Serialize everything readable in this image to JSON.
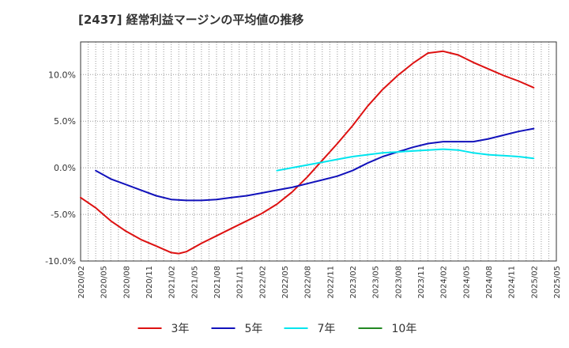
{
  "chart_data": {
    "type": "line",
    "title": "[2437]  経常利益マージンの平均値の推移",
    "y_unit": "%",
    "ylim": [
      -10,
      13.5
    ],
    "yticks": [
      10,
      5,
      0,
      -5,
      -10
    ],
    "ytick_labels": [
      "10.0%",
      "5.0%",
      "0.0%",
      "-5.0%",
      "-10.0%"
    ],
    "x_range": [
      "2020-02",
      "2025-05"
    ],
    "x_ticks": [
      "2020/02",
      "2020/05",
      "2020/08",
      "2020/11",
      "2021/02",
      "2021/05",
      "2021/08",
      "2021/11",
      "2022/02",
      "2022/05",
      "2022/08",
      "2022/11",
      "2023/02",
      "2023/05",
      "2023/08",
      "2023/11",
      "2024/02",
      "2024/05",
      "2024/08",
      "2024/11",
      "2025/02",
      "2025/05"
    ],
    "grid": true,
    "legend_position": "bottom",
    "series": [
      {
        "name": "3年",
        "color": "#dd1111",
        "x": [
          "2020-02",
          "2020-04",
          "2020-06",
          "2020-08",
          "2020-10",
          "2020-12",
          "2021-02",
          "2021-03",
          "2021-04",
          "2021-06",
          "2021-08",
          "2021-10",
          "2021-12",
          "2022-02",
          "2022-04",
          "2022-06",
          "2022-08",
          "2022-10",
          "2022-12",
          "2023-02",
          "2023-04",
          "2023-06",
          "2023-08",
          "2023-10",
          "2023-12",
          "2024-02",
          "2024-03",
          "2024-04",
          "2024-06",
          "2024-08",
          "2024-10",
          "2024-12",
          "2025-02"
        ],
        "values": [
          -3.2,
          -4.3,
          -5.7,
          -6.8,
          -7.7,
          -8.4,
          -9.1,
          -9.2,
          -9.0,
          -8.1,
          -7.3,
          -6.5,
          -5.7,
          -4.9,
          -3.9,
          -2.6,
          -1.0,
          0.8,
          2.6,
          4.5,
          6.6,
          8.4,
          9.9,
          11.2,
          12.3,
          12.5,
          12.3,
          12.1,
          11.3,
          10.6,
          9.9,
          9.3,
          8.6
        ]
      },
      {
        "name": "5年",
        "color": "#1111bb",
        "x": [
          "2020-04",
          "2020-06",
          "2020-08",
          "2020-10",
          "2020-12",
          "2021-02",
          "2021-04",
          "2021-06",
          "2021-08",
          "2021-10",
          "2021-12",
          "2022-02",
          "2022-04",
          "2022-06",
          "2022-08",
          "2022-10",
          "2022-12",
          "2023-02",
          "2023-04",
          "2023-06",
          "2023-08",
          "2023-10",
          "2023-12",
          "2024-02",
          "2024-04",
          "2024-06",
          "2024-08",
          "2024-10",
          "2024-12",
          "2025-02"
        ],
        "values": [
          -0.3,
          -1.2,
          -1.8,
          -2.4,
          -3.0,
          -3.4,
          -3.5,
          -3.5,
          -3.4,
          -3.2,
          -3.0,
          -2.7,
          -2.4,
          -2.1,
          -1.7,
          -1.3,
          -0.9,
          -0.3,
          0.5,
          1.2,
          1.7,
          2.2,
          2.6,
          2.8,
          2.8,
          2.8,
          3.1,
          3.5,
          3.9,
          4.2
        ]
      },
      {
        "name": "7年",
        "color": "#00e5ee",
        "x": [
          "2022-04",
          "2022-06",
          "2022-08",
          "2022-10",
          "2022-12",
          "2023-02",
          "2023-04",
          "2023-06",
          "2023-08",
          "2023-10",
          "2023-12",
          "2024-02",
          "2024-04",
          "2024-06",
          "2024-08",
          "2024-10",
          "2024-12",
          "2025-02"
        ],
        "values": [
          -0.3,
          0.0,
          0.3,
          0.6,
          0.9,
          1.2,
          1.4,
          1.6,
          1.7,
          1.8,
          1.9,
          2.0,
          1.9,
          1.6,
          1.4,
          1.3,
          1.2,
          1.0
        ]
      },
      {
        "name": "10年",
        "color": "#228822",
        "x": [],
        "values": []
      }
    ]
  }
}
